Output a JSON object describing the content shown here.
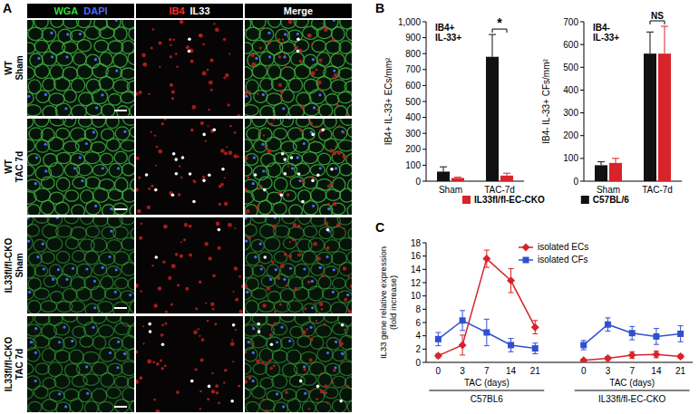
{
  "panel_a": {
    "label": "A",
    "channels": [
      [
        {
          "text": "WGA",
          "color": "#33dd33"
        },
        {
          "text": "DAPI",
          "color": "#4a6cff"
        }
      ],
      [
        {
          "text": "IB4",
          "color": "#ff2a2a"
        },
        {
          "text": "IL33",
          "color": "#ffffff"
        }
      ],
      [
        {
          "text": "Merge",
          "color": "#ffffff"
        }
      ]
    ],
    "rows": [
      [
        "WT",
        "Sham"
      ],
      [
        "WT",
        "TAC 7d"
      ],
      [
        "IL33fl/fl-CKO",
        "Sham"
      ],
      [
        "IL33fl/fl-CKO",
        "TAC 7d"
      ]
    ]
  },
  "chart_data": [
    {
      "type": "bar",
      "panel_label": "B",
      "title": "IB4+ IL-33+",
      "y_label": "IB4+ IL-33+ ECs/mm²",
      "categories": [
        "Sham",
        "TAC-7d"
      ],
      "series": [
        {
          "name": "C57BL/6",
          "color": "#111111",
          "values": [
            60,
            780
          ],
          "errors": [
            30,
            140
          ]
        },
        {
          "name": "IL33fl/fl-EC-CKO",
          "color": "#d8232a",
          "values": [
            20,
            35
          ],
          "errors": [
            5,
            15
          ]
        }
      ],
      "ylim": [
        0,
        1000
      ],
      "yticks": [
        0,
        100,
        200,
        300,
        400,
        500,
        600,
        700,
        800,
        900,
        {
          "value": 1000,
          "label": "1,000"
        }
      ],
      "annotations": [
        {
          "text": "*",
          "category": 1
        }
      ],
      "legend": "bottom"
    },
    {
      "type": "bar",
      "title": "IB4- IL-33+",
      "y_label": "IB4- IL-33+ CFs/mm²",
      "categories": [
        "Sham",
        "TAC-7d"
      ],
      "series": [
        {
          "color": "#111111",
          "values": [
            70,
            560
          ],
          "errors": [
            15,
            95
          ]
        },
        {
          "color": "#d8232a",
          "values": [
            80,
            560
          ],
          "errors": [
            20,
            120
          ]
        }
      ],
      "ylim": [
        0,
        700
      ],
      "yticks": [
        0,
        100,
        200,
        300,
        400,
        500,
        600,
        700
      ],
      "annotations": [
        {
          "text": "NS",
          "category": 1
        }
      ]
    },
    {
      "type": "line",
      "panel_label": "C",
      "y_label": [
        "IL33 gene relative expression",
        "(fold increase)"
      ],
      "categories": [
        "0",
        "3",
        "7",
        "14",
        "21",
        null,
        "0",
        "3",
        "7",
        "14",
        "21"
      ],
      "groups": [
        {
          "label": "C57BL6",
          "x_label": "TAC (days)"
        },
        {
          "label": "IL33fl/fl-EC-CKO",
          "x_label": "TAC (days)"
        }
      ],
      "series": [
        {
          "name": "isolated ECs",
          "color": "#d8232a",
          "marker": "diamond",
          "values": [
            1.0,
            2.6,
            15.6,
            12.3,
            5.3,
            null,
            0.3,
            0.6,
            1.1,
            1.2,
            0.9
          ],
          "errors": [
            0.3,
            1.5,
            1.3,
            1.8,
            1.0,
            null,
            0.2,
            0.3,
            0.5,
            0.5,
            0.3
          ]
        },
        {
          "name": "isolated CFs",
          "color": "#3050d0",
          "marker": "square",
          "values": [
            3.5,
            6.3,
            4.5,
            2.6,
            2.1,
            null,
            2.6,
            5.7,
            4.4,
            3.9,
            4.3
          ],
          "errors": [
            1.0,
            1.5,
            2.0,
            1.0,
            0.8,
            null,
            0.7,
            1.0,
            1.0,
            1.2,
            1.2
          ]
        }
      ],
      "ylim": [
        0,
        18
      ],
      "yticks": [
        0,
        2,
        4,
        6,
        8,
        10,
        12,
        14,
        16,
        18
      ],
      "legend": "top"
    }
  ]
}
